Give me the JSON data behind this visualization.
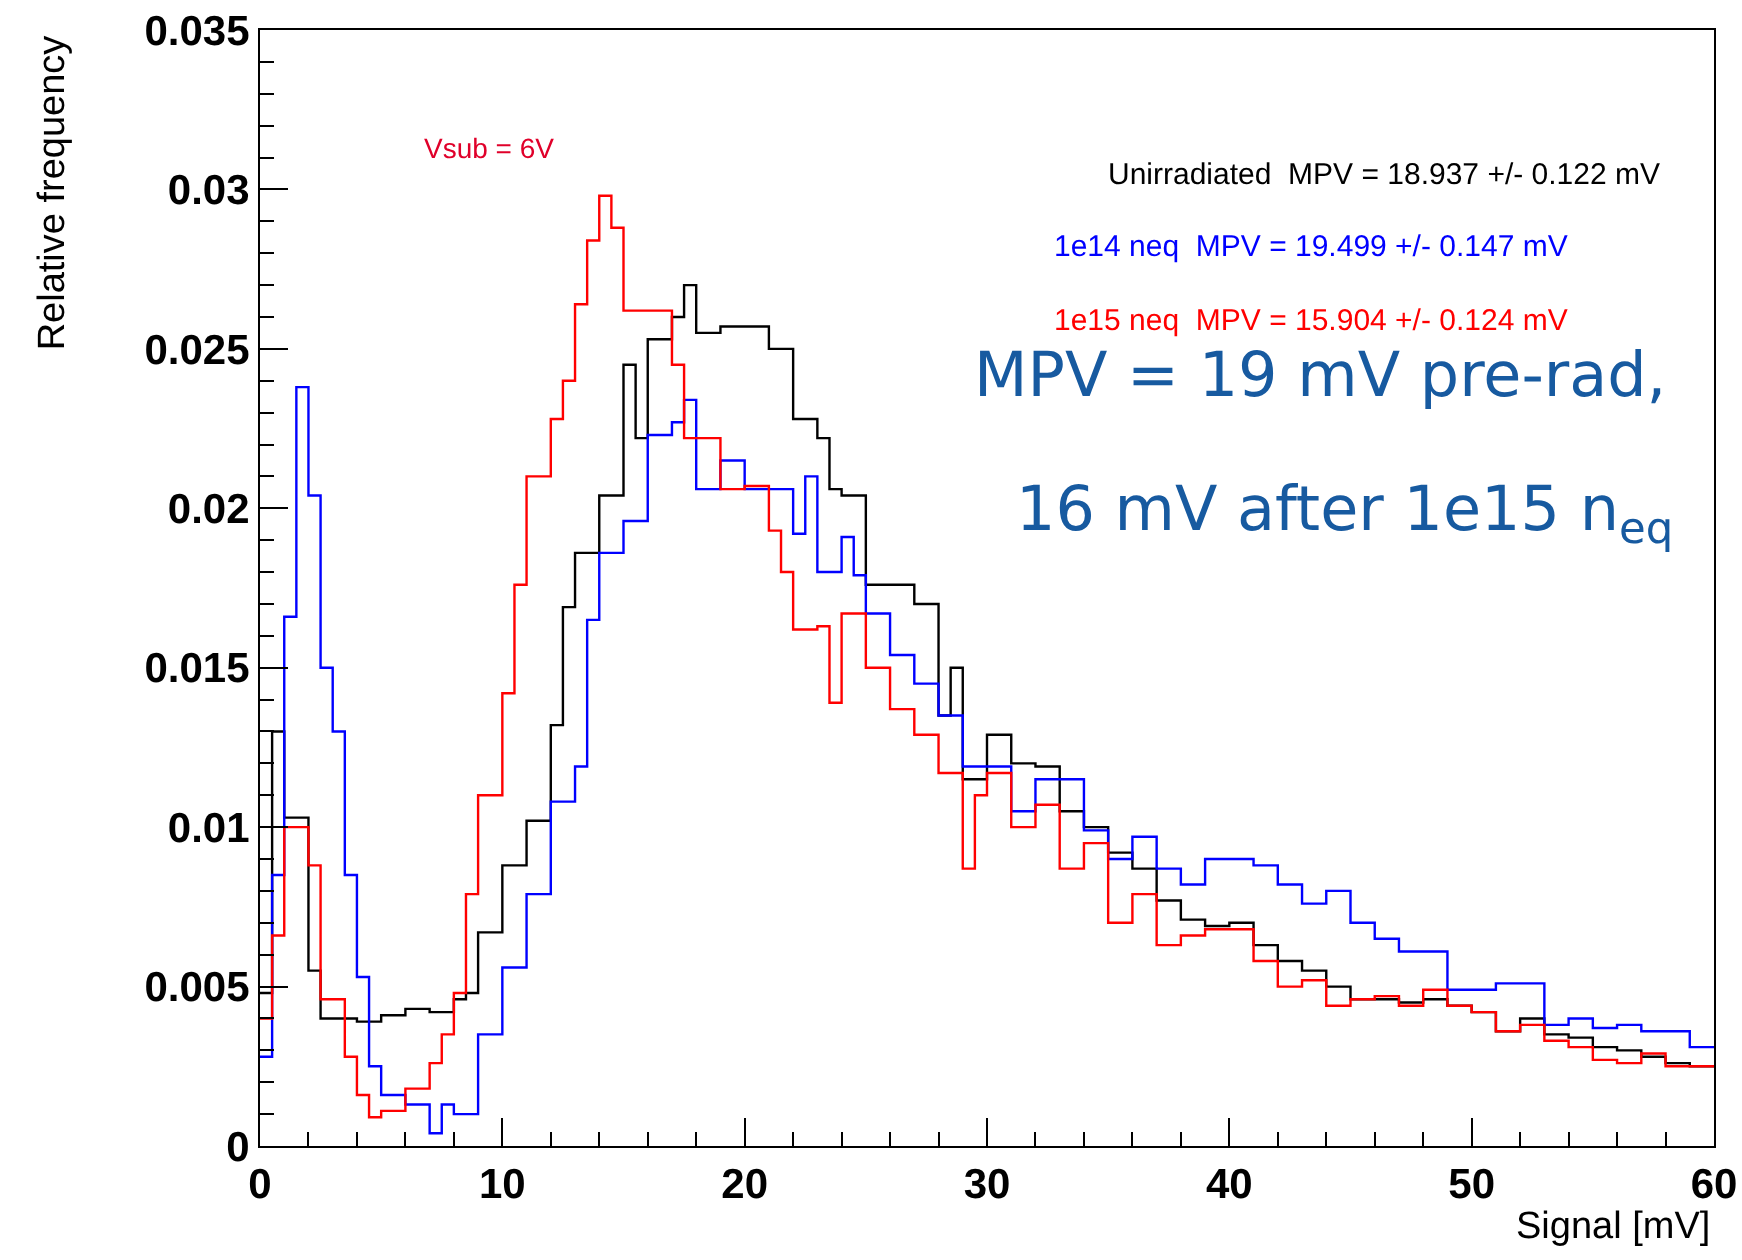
{
  "chart_data": {
    "type": "step",
    "xlabel": "Signal [mV]",
    "ylabel": "Relative frequency",
    "xlim": [
      0,
      60
    ],
    "xticks": [
      0,
      10,
      20,
      30,
      40,
      50,
      60
    ],
    "ylim": [
      0,
      0.035
    ],
    "yticks": [
      0,
      0.005,
      0.01,
      0.015,
      0.02,
      0.025,
      0.03,
      0.035
    ],
    "grid": false,
    "legend": "top right",
    "annotations": [
      "Vsub = 6V",
      "MPV = 19 mV pre-rad,",
      "16 mV after 1e15 n$_{eq}$"
    ],
    "series": [
      {
        "name": "Unirradiated  MPV = 18.937 +/- 0.122 mV",
        "color": "#000000",
        "x": [
          0,
          0.5,
          1,
          2,
          2.5,
          4,
          5,
          6,
          7,
          8,
          8.5,
          9,
          10,
          11,
          12,
          12.5,
          13,
          14,
          15,
          15.5,
          16,
          17,
          17.5,
          18,
          19,
          20,
          21,
          22,
          23,
          23.5,
          24,
          25,
          27,
          28,
          28.5,
          29,
          30,
          31,
          32,
          33,
          34,
          35,
          36,
          37,
          38,
          39,
          40,
          41,
          42,
          43,
          44,
          45,
          47,
          48,
          49,
          50,
          51,
          52,
          53,
          54,
          55,
          56,
          57,
          58,
          59,
          60
        ],
        "values": [
          0.0048,
          0.013,
          0.0103,
          0.0055,
          0.004,
          0.0039,
          0.0041,
          0.0043,
          0.0042,
          0.0046,
          0.0048,
          0.0067,
          0.0088,
          0.0102,
          0.0132,
          0.0169,
          0.0186,
          0.0204,
          0.0245,
          0.0222,
          0.0253,
          0.026,
          0.027,
          0.0255,
          0.0257,
          0.0257,
          0.025,
          0.0228,
          0.0222,
          0.0206,
          0.0204,
          0.0176,
          0.017,
          0.0135,
          0.015,
          0.0115,
          0.0129,
          0.012,
          0.0119,
          0.0105,
          0.01,
          0.0092,
          0.0087,
          0.0077,
          0.0071,
          0.0069,
          0.007,
          0.0063,
          0.0058,
          0.0055,
          0.005,
          0.0046,
          0.0045,
          0.0046,
          0.0044,
          0.0042,
          0.0036,
          0.004,
          0.0035,
          0.0034,
          0.0031,
          0.003,
          0.0028,
          0.0026,
          0.0025,
          0.0025
        ]
      },
      {
        "name": "1e14 neq  MPV = 19.499 +/- 0.147 mV",
        "color": "#0000ff",
        "x": [
          0,
          0.5,
          1,
          1.5,
          2,
          2.5,
          3,
          3.5,
          4,
          4.5,
          5,
          6,
          7,
          7.5,
          8,
          9,
          10,
          11,
          12,
          13,
          13.5,
          14,
          15,
          16,
          17,
          17.5,
          18,
          19,
          20,
          22,
          22.5,
          23,
          24,
          24.5,
          25,
          26,
          27,
          28,
          29,
          31,
          32,
          34,
          35,
          36,
          37,
          38,
          39,
          41,
          42,
          43,
          44,
          45,
          46,
          47,
          49,
          51,
          53,
          54,
          55,
          56,
          57,
          59,
          60
        ],
        "values": [
          0.0028,
          0.0085,
          0.0166,
          0.0238,
          0.0204,
          0.015,
          0.013,
          0.0085,
          0.0053,
          0.0025,
          0.0016,
          0.0013,
          0.0004,
          0.0013,
          0.001,
          0.0035,
          0.0056,
          0.0079,
          0.0108,
          0.0119,
          0.0165,
          0.0186,
          0.0196,
          0.0223,
          0.0227,
          0.0234,
          0.0206,
          0.0215,
          0.0206,
          0.0192,
          0.021,
          0.018,
          0.0191,
          0.0179,
          0.0167,
          0.0154,
          0.0145,
          0.0135,
          0.0119,
          0.0105,
          0.0115,
          0.0099,
          0.009,
          0.0097,
          0.0087,
          0.0082,
          0.009,
          0.0088,
          0.0082,
          0.0076,
          0.008,
          0.007,
          0.0065,
          0.0061,
          0.0049,
          0.0051,
          0.0038,
          0.004,
          0.0037,
          0.0038,
          0.0036,
          0.0031,
          0.0031
        ]
      },
      {
        "name": "1e15 neq  MPV = 15.904 +/- 0.124 mV",
        "color": "#ff0000",
        "x": [
          0,
          0.5,
          1,
          2,
          2.5,
          3.5,
          4,
          4.5,
          5,
          6,
          7,
          7.5,
          8,
          8.5,
          9,
          10,
          10.5,
          11,
          12,
          12.5,
          13,
          13.5,
          14,
          14.5,
          15,
          16,
          17,
          17.5,
          19,
          20,
          21,
          21.5,
          22,
          23,
          23.5,
          24,
          25,
          26,
          27,
          28,
          29,
          29.5,
          30,
          31,
          32,
          33,
          34,
          35,
          36,
          37,
          38,
          39,
          41,
          42,
          43,
          44,
          45,
          46,
          47,
          48,
          49,
          50,
          51,
          52,
          53,
          54,
          55,
          56,
          57,
          58,
          60
        ],
        "values": [
          0.004,
          0.0066,
          0.01,
          0.0088,
          0.0046,
          0.0028,
          0.0016,
          0.0009,
          0.0011,
          0.0018,
          0.0026,
          0.0035,
          0.0048,
          0.0079,
          0.011,
          0.0142,
          0.0176,
          0.021,
          0.0228,
          0.024,
          0.0264,
          0.0284,
          0.0298,
          0.0288,
          0.0262,
          0.0262,
          0.0245,
          0.0222,
          0.0206,
          0.0207,
          0.0193,
          0.018,
          0.0162,
          0.0163,
          0.0139,
          0.0167,
          0.015,
          0.0137,
          0.0129,
          0.0117,
          0.0087,
          0.011,
          0.0117,
          0.01,
          0.0107,
          0.0087,
          0.0095,
          0.007,
          0.0079,
          0.0063,
          0.0066,
          0.0068,
          0.0058,
          0.005,
          0.0052,
          0.0044,
          0.0046,
          0.0047,
          0.0044,
          0.0049,
          0.0044,
          0.0042,
          0.0036,
          0.0038,
          0.0033,
          0.0031,
          0.0027,
          0.0026,
          0.0029,
          0.0025,
          0.0025
        ]
      }
    ]
  }
}
